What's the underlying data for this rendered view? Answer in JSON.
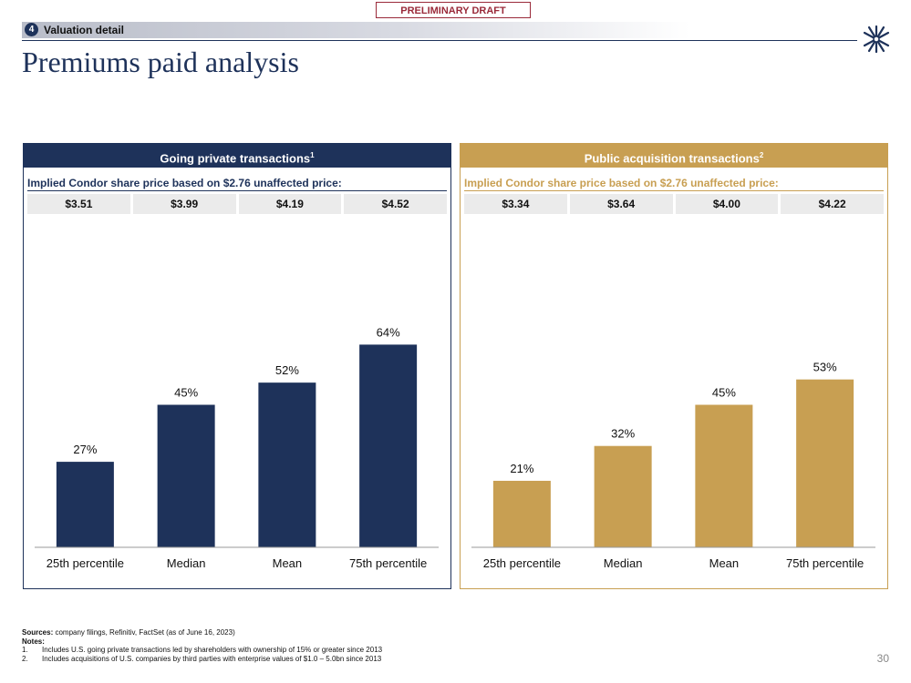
{
  "draft_label": "PRELIMINARY DRAFT",
  "section": {
    "number": "4",
    "title": "Valuation detail"
  },
  "page_title": "Premiums paid analysis",
  "colors": {
    "navy": "#1e325a",
    "gold": "#c89f52"
  },
  "panels": [
    {
      "title": "Going private transactions",
      "footnote": "1",
      "implied_label": "Implied Condor share price based on $2.76 unaffected price:",
      "prices": [
        "$3.51",
        "$3.99",
        "$4.19",
        "$4.52"
      ]
    },
    {
      "title": "Public acquisition transactions",
      "footnote": "2",
      "implied_label": "Implied Condor share price based on $2.76 unaffected price:",
      "prices": [
        "$3.34",
        "$3.64",
        "$4.00",
        "$4.22"
      ]
    }
  ],
  "chart_data": [
    {
      "type": "bar",
      "title": "Going private transactions",
      "categories": [
        "25th percentile",
        "Median",
        "Mean",
        "75th percentile"
      ],
      "values": [
        27,
        45,
        52,
        64
      ],
      "labels": [
        "27%",
        "45%",
        "52%",
        "64%"
      ],
      "unit": "%",
      "ylim": [
        0,
        90
      ],
      "color": "#1e325a"
    },
    {
      "type": "bar",
      "title": "Public acquisition transactions",
      "categories": [
        "25th percentile",
        "Median",
        "Mean",
        "75th percentile"
      ],
      "values": [
        21,
        32,
        45,
        53
      ],
      "labels": [
        "21%",
        "32%",
        "45%",
        "53%"
      ],
      "unit": "%",
      "ylim": [
        0,
        90
      ],
      "color": "#c89f52"
    }
  ],
  "footer": {
    "sources_label": "Sources:",
    "sources_text": " company filings, Refinitiv, FactSet (as of June 16, 2023)",
    "notes_label": "Notes:",
    "notes": [
      {
        "num": "1.",
        "text": "Includes U.S. going private transactions led by shareholders with ownership of 15% or greater since 2013"
      },
      {
        "num": "2.",
        "text": "Includes acquisitions of U.S. companies by third parties with enterprise values of $1.0 – 5.0bn since 2013"
      }
    ]
  },
  "page_number": "30"
}
